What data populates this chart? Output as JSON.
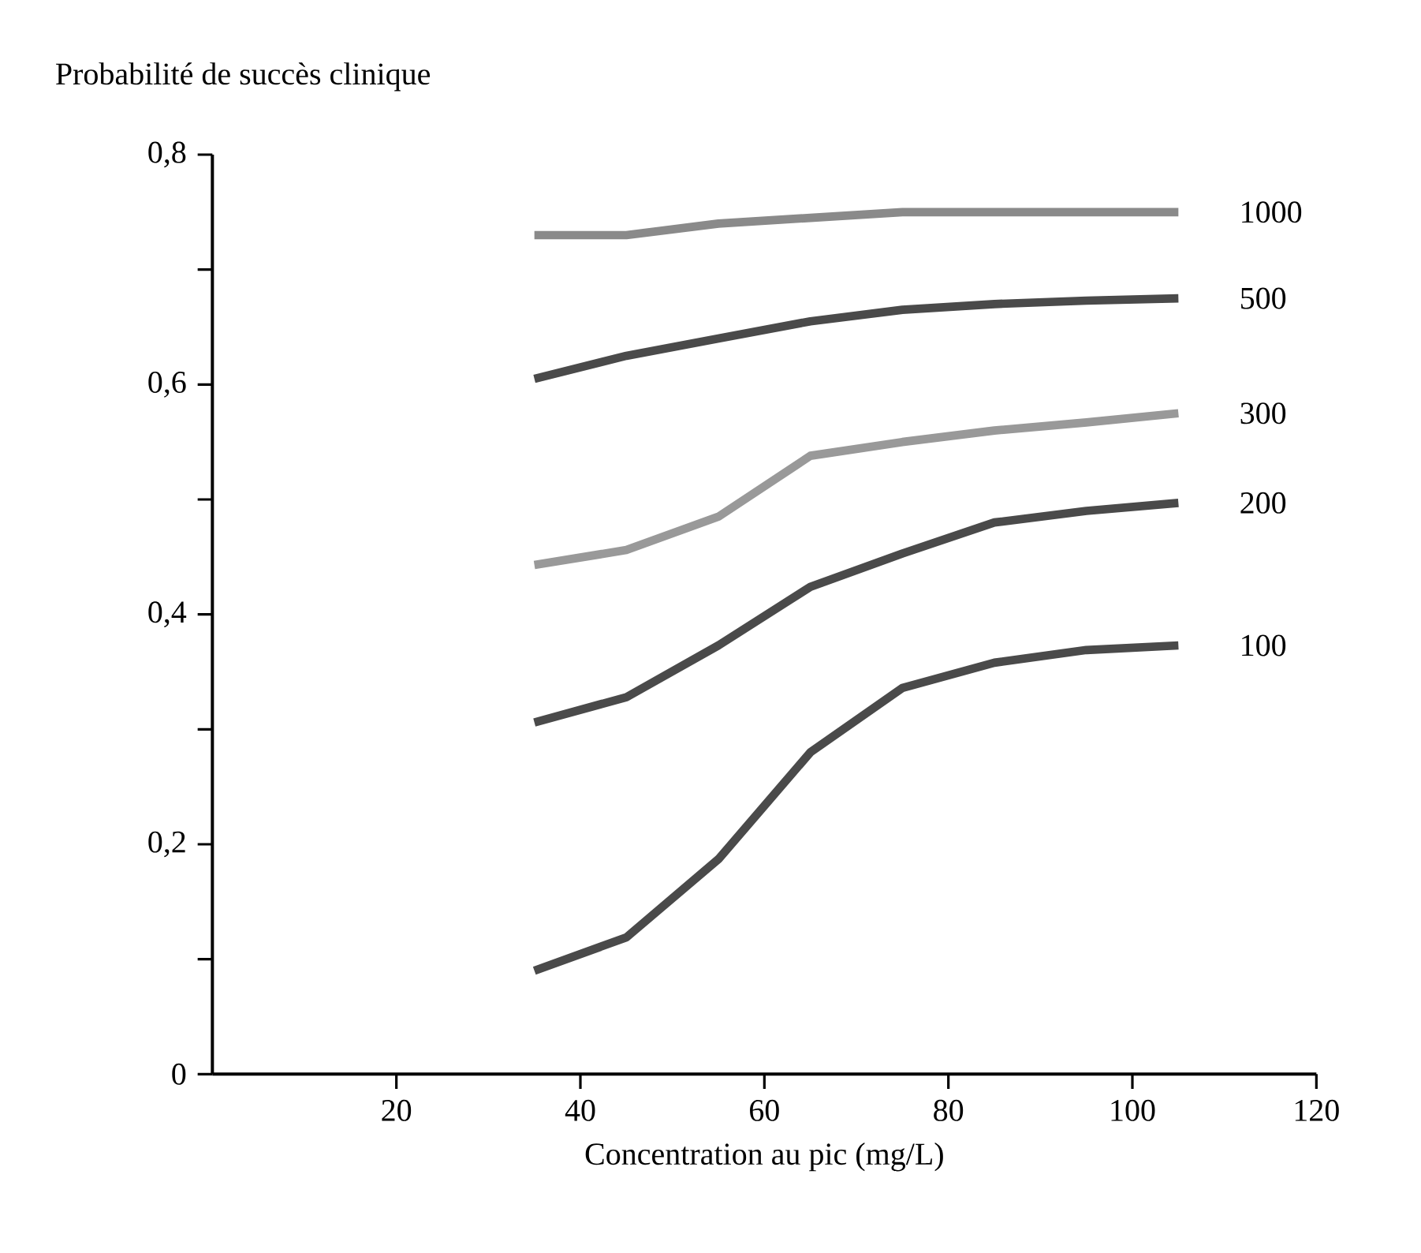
{
  "chart_data": {
    "type": "line",
    "ylabel": "Probabilité de succès clinique",
    "xlabel": "Concentration au pic (mg/L)",
    "xlim": [
      0,
      120
    ],
    "ylim": [
      0,
      0.8
    ],
    "line_style": "solid",
    "xticks": [
      20,
      40,
      60,
      80,
      100,
      120
    ],
    "yticks": [
      {
        "value": 0,
        "label": "0"
      },
      {
        "value": 0.1,
        "label": null
      },
      {
        "value": 0.2,
        "label": "0,2"
      },
      {
        "value": 0.3,
        "label": null
      },
      {
        "value": 0.4,
        "label": "0,4"
      },
      {
        "value": 0.5,
        "label": null
      },
      {
        "value": 0.6,
        "label": "0,6"
      },
      {
        "value": 0.7,
        "label": null
      },
      {
        "value": 0.8,
        "label": "0,8"
      }
    ],
    "x": [
      35,
      45,
      55,
      65,
      75,
      85,
      95,
      105
    ],
    "series": [
      {
        "name": "1000",
        "color": "#8a8a8a",
        "values": [
          0.73,
          0.73,
          0.74,
          0.745,
          0.75,
          0.75,
          0.75,
          0.75
        ]
      },
      {
        "name": "500",
        "color": "#4a4a4a",
        "values": [
          0.605,
          0.625,
          0.64,
          0.655,
          0.665,
          0.67,
          0.673,
          0.675
        ]
      },
      {
        "name": "300",
        "color": "#999999",
        "values": [
          0.443,
          0.456,
          0.485,
          0.538,
          0.55,
          0.56,
          0.567,
          0.575
        ]
      },
      {
        "name": "200",
        "color": "#4a4a4a",
        "values": [
          0.306,
          0.328,
          0.373,
          0.424,
          0.453,
          0.48,
          0.49,
          0.497
        ]
      },
      {
        "name": "100",
        "color": "#4a4a4a",
        "values": [
          0.09,
          0.119,
          0.187,
          0.28,
          0.336,
          0.358,
          0.369,
          0.373
        ]
      }
    ]
  }
}
